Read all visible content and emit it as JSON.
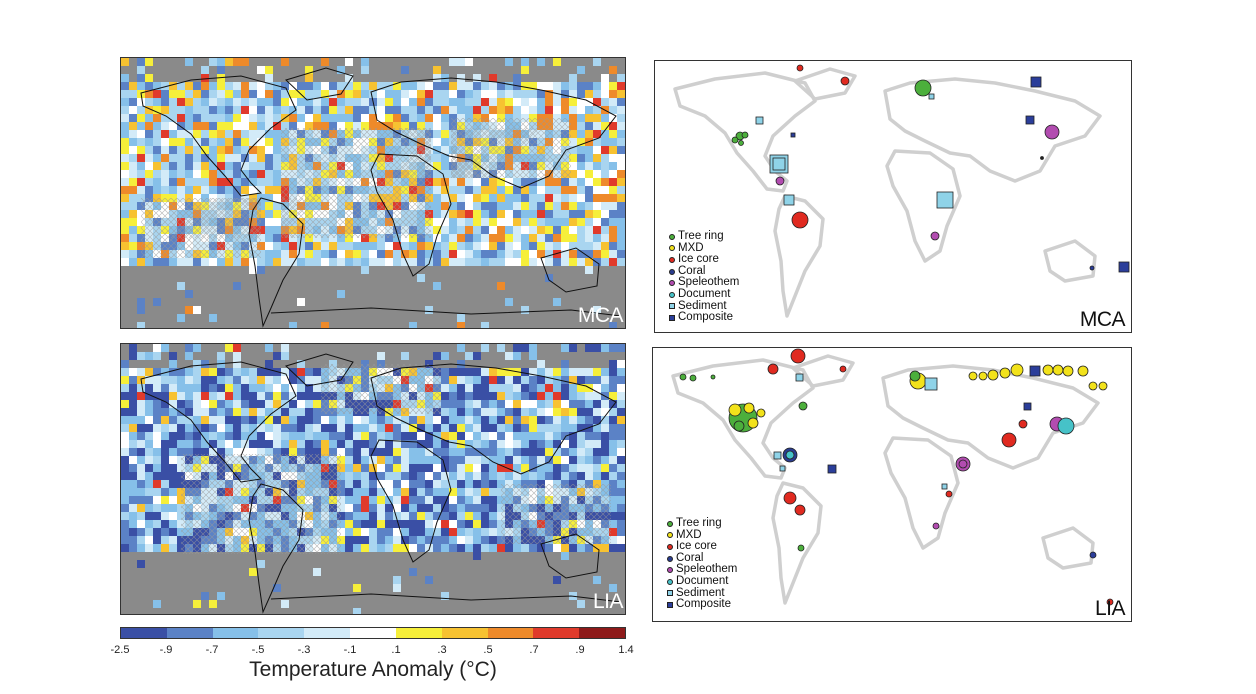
{
  "panels": {
    "anomaly_mca": {
      "label": "MCA"
    },
    "anomaly_lia": {
      "label": "LIA"
    },
    "proxy_mca": {
      "label": "MCA"
    },
    "proxy_lia": {
      "label": "LIA"
    }
  },
  "legend": {
    "items": [
      {
        "name": "Tree ring",
        "shape": "circle",
        "color": "#4caf3c"
      },
      {
        "name": "MXD",
        "shape": "circle",
        "color": "#f2e21b"
      },
      {
        "name": "Ice core",
        "shape": "circle",
        "color": "#e02a20"
      },
      {
        "name": "Coral",
        "shape": "circle",
        "color": "#2a3c8f"
      },
      {
        "name": "Speleothem",
        "shape": "circle",
        "color": "#b24cb0"
      },
      {
        "name": "Document",
        "shape": "circle",
        "color": "#46c2c8"
      },
      {
        "name": "Sediment",
        "shape": "square",
        "color": "#8fd3e8"
      },
      {
        "name": "Composite",
        "shape": "square",
        "color": "#2b3e9a"
      }
    ]
  },
  "colorbar": {
    "title": "Temperature Anomaly (°C)",
    "ticks": [
      "-2.5",
      "-.9",
      "-.7",
      "-.5",
      "-.3",
      "-.1",
      ".1",
      ".3",
      ".5",
      ".7",
      ".9",
      "1.4"
    ],
    "colors": [
      "#3a4fa5",
      "#5b82c6",
      "#86c0e9",
      "#a9d5f0",
      "#d3ebf8",
      "#ffffff",
      "#f6ef3a",
      "#f7c231",
      "#ee8a2a",
      "#e03a2b",
      "#8e1a1a"
    ]
  },
  "colors": {
    "ocean_missing": "#8a8a8a",
    "land_gray": "#cfcfcf",
    "hatch": "#9a9a9a"
  }
}
